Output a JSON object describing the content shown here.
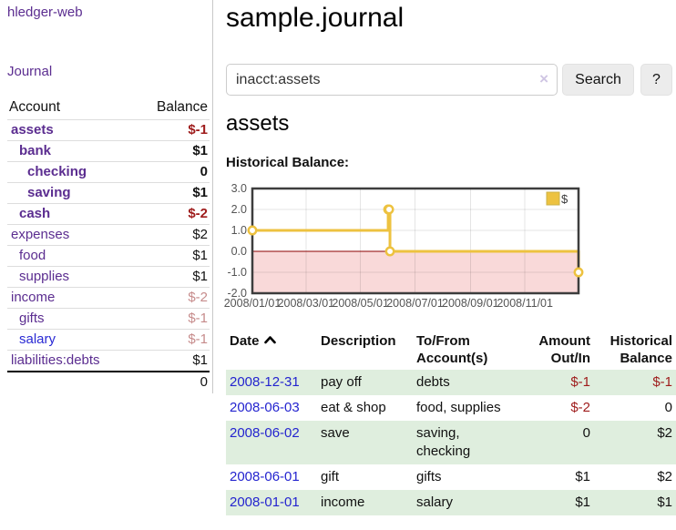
{
  "app": {
    "brand": "hledger-web",
    "nav": {
      "journal": "Journal"
    }
  },
  "sidebar": {
    "headers": {
      "account": "Account",
      "balance": "Balance"
    },
    "accounts": [
      {
        "name": "assets",
        "balance": "$-1",
        "depth": 0,
        "bold": true
      },
      {
        "name": "bank",
        "balance": "$1",
        "depth": 1,
        "bold": true
      },
      {
        "name": "checking",
        "balance": "0",
        "depth": 2,
        "bold": true
      },
      {
        "name": "saving",
        "balance": "$1",
        "depth": 2,
        "bold": true
      },
      {
        "name": "cash",
        "balance": "$-2",
        "depth": 1,
        "bold": true
      },
      {
        "name": "expenses",
        "balance": "$2",
        "depth": 0,
        "bold": false
      },
      {
        "name": "food",
        "balance": "$1",
        "depth": 1,
        "bold": false
      },
      {
        "name": "supplies",
        "balance": "$1",
        "depth": 1,
        "bold": false
      },
      {
        "name": "income",
        "balance": "$-2",
        "depth": 0,
        "bold": false
      },
      {
        "name": "gifts",
        "balance": "$-1",
        "depth": 1,
        "bold": false
      },
      {
        "name": "salary",
        "balance": "$-1",
        "depth": 1,
        "bold": false,
        "link_color": "#2a2ad4"
      },
      {
        "name": "liabilities:debts",
        "balance": "$1",
        "depth": 0,
        "bold": false
      }
    ],
    "total": "0"
  },
  "header": {
    "title": "sample.journal"
  },
  "search": {
    "value": "inacct:assets",
    "clear_icon": "×",
    "button_label": "Search",
    "help_label": "?"
  },
  "account_page": {
    "heading": "assets",
    "chart_label": "Historical Balance:"
  },
  "chart_data": {
    "type": "line",
    "step": true,
    "title": "Historical Balance",
    "series": [
      {
        "name": "$",
        "color": "#edc240",
        "points": [
          [
            "2008/01/01",
            1
          ],
          [
            "2008/06/01",
            2
          ],
          [
            "2008/06/02",
            2
          ],
          [
            "2008/06/03",
            0
          ],
          [
            "2008/12/31",
            -1
          ]
        ]
      }
    ],
    "x_range": [
      "2008/01/01",
      "2008/12/31"
    ],
    "x_tick_labels": [
      "2008/01/01",
      "2008/03/01",
      "2008/05/01",
      "2008/07/01",
      "2008/09/01",
      "2008/11/01"
    ],
    "y_tick_labels": [
      "3.0",
      "2.0",
      "1.0",
      "0.0",
      "-1.0",
      "-2.0"
    ],
    "y_ticks": [
      3,
      2,
      1,
      0,
      -1,
      -2
    ],
    "ylim": [
      -2,
      3
    ],
    "grid": true,
    "legend_position": "top-right",
    "negative_region_fill": "#f9d9d9",
    "zero_line_color": "#8b0000",
    "border_color": "#3d3d3d"
  },
  "register": {
    "headers": {
      "date": "Date",
      "sort_icon": "chevron-up",
      "description": "Description",
      "accounts": "To/From Account(s)",
      "amount": "Amount Out/In",
      "balance": "Historical Balance"
    },
    "rows": [
      {
        "date": "2008-12-31",
        "description": "pay off",
        "accounts": "debts",
        "amount": "$-1",
        "balance": "$-1"
      },
      {
        "date": "2008-06-03",
        "description": "eat & shop",
        "accounts": "food, supplies",
        "amount": "$-2",
        "balance": "0"
      },
      {
        "date": "2008-06-02",
        "description": "save",
        "accounts": "saving, checking",
        "amount": "0",
        "balance": "$2"
      },
      {
        "date": "2008-06-01",
        "description": "gift",
        "accounts": "gifts",
        "amount": "$1",
        "balance": "$2"
      },
      {
        "date": "2008-01-01",
        "description": "income",
        "accounts": "salary",
        "amount": "$1",
        "balance": "$1"
      }
    ]
  },
  "colors": {
    "link_purple": "#5b2d90",
    "link_blue": "#2424cf",
    "negative_strong": "#9e1b1b",
    "negative_soft": "#c68b8b",
    "row_shade_green": "#dfeede",
    "chart_line_gold": "#edc240"
  }
}
